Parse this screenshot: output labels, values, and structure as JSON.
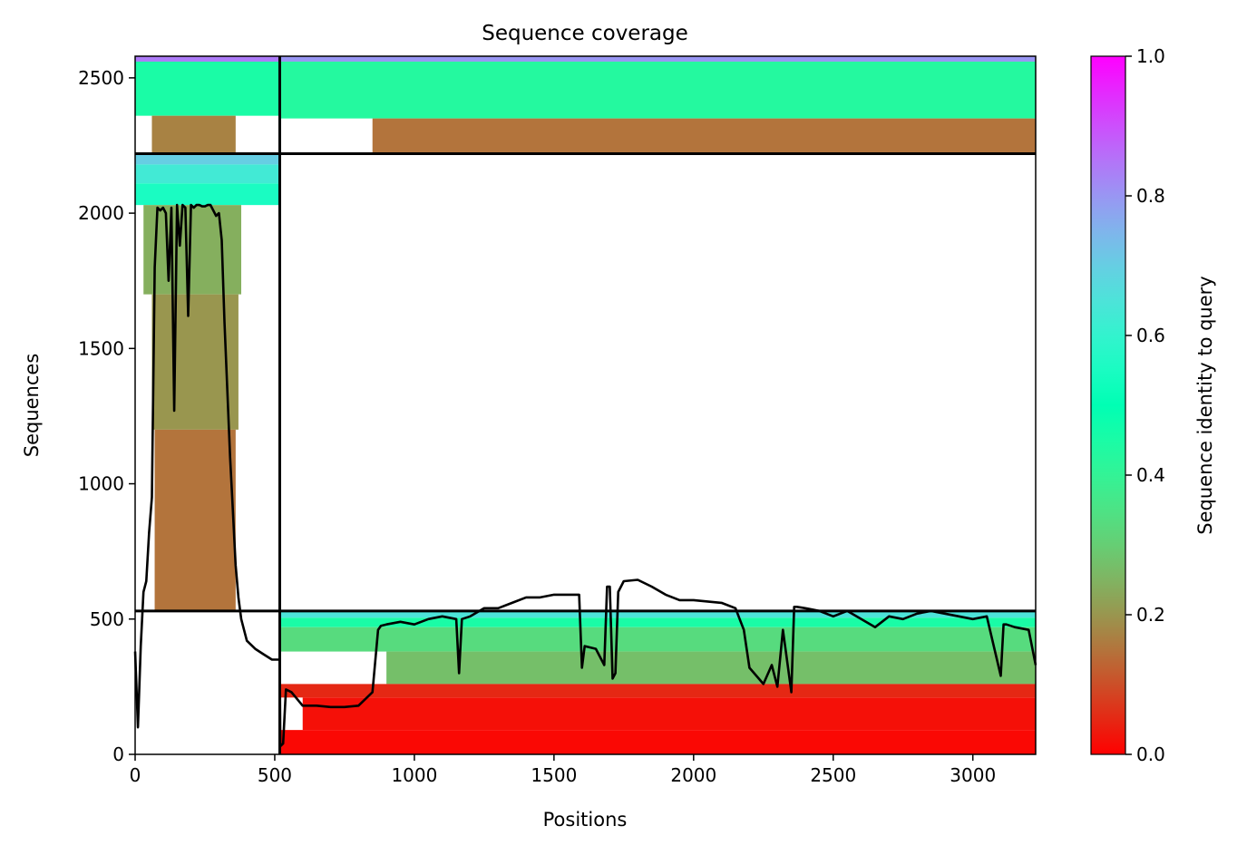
{
  "chart_data": {
    "type": "heatmap",
    "title": "Sequence coverage",
    "xlabel": "Positions",
    "ylabel": "Sequences",
    "xlim": [
      0,
      3225
    ],
    "ylim": [
      0,
      2580
    ],
    "x_ticks": [
      0,
      500,
      1000,
      1500,
      2000,
      2500,
      3000
    ],
    "y_ticks": [
      0,
      500,
      1000,
      1500,
      2000,
      2500
    ],
    "grid": false,
    "colormap": "rainbow_r",
    "colorbar": {
      "label": "Sequence identity to query",
      "range": [
        0,
        1
      ],
      "ticks": [
        0.0,
        0.2,
        0.4,
        0.6,
        0.8,
        1.0
      ],
      "tick_labels": [
        "0.0",
        "0.2",
        "0.4",
        "0.6",
        "0.8",
        "1.0"
      ]
    },
    "domain_boundaries": {
      "x": [
        518
      ],
      "y": [
        530,
        2220
      ]
    },
    "blocks": [
      {
        "x": [
          0,
          518
        ],
        "y": [
          2560,
          2580
        ],
        "identity": 0.84
      },
      {
        "x": [
          0,
          518
        ],
        "y": [
          2360,
          2560
        ],
        "identity": 0.45
      },
      {
        "x": [
          60,
          360
        ],
        "y": [
          2220,
          2360
        ],
        "identity": 0.17
      },
      {
        "x": [
          0,
          518
        ],
        "y": [
          2180,
          2220
        ],
        "identity": 0.7
      },
      {
        "x": [
          0,
          518
        ],
        "y": [
          2110,
          2180
        ],
        "identity": 0.63
      },
      {
        "x": [
          0,
          518
        ],
        "y": [
          2030,
          2110
        ],
        "identity": 0.55
      },
      {
        "x": [
          30,
          380
        ],
        "y": [
          1700,
          2030
        ],
        "identity": 0.24
      },
      {
        "x": [
          60,
          370
        ],
        "y": [
          1200,
          1700
        ],
        "identity": 0.2
      },
      {
        "x": [
          70,
          360
        ],
        "y": [
          530,
          1200
        ],
        "identity": 0.15
      },
      {
        "x": [
          518,
          3225
        ],
        "y": [
          2560,
          2580
        ],
        "identity": 0.8
      },
      {
        "x": [
          518,
          3225
        ],
        "y": [
          2350,
          2560
        ],
        "identity": 0.43
      },
      {
        "x": [
          850,
          3225
        ],
        "y": [
          2220,
          2350
        ],
        "identity": 0.15
      },
      {
        "x": [
          518,
          3225
        ],
        "y": [
          505,
          530
        ],
        "identity": 0.65
      },
      {
        "x": [
          518,
          3225
        ],
        "y": [
          470,
          505
        ],
        "identity": 0.45
      },
      {
        "x": [
          518,
          3225
        ],
        "y": [
          380,
          470
        ],
        "identity": 0.33
      },
      {
        "x": [
          900,
          3225
        ],
        "y": [
          260,
          380
        ],
        "identity": 0.27
      },
      {
        "x": [
          520,
          3225
        ],
        "y": [
          210,
          260
        ],
        "identity": 0.05
      },
      {
        "x": [
          600,
          3225
        ],
        "y": [
          90,
          210
        ],
        "identity": 0.02
      },
      {
        "x": [
          520,
          3225
        ],
        "y": [
          0,
          90
        ],
        "identity": 0.01
      }
    ],
    "coverage_line": {
      "x": [
        0,
        10,
        20,
        30,
        40,
        50,
        60,
        70,
        80,
        90,
        100,
        110,
        120,
        130,
        140,
        150,
        160,
        170,
        180,
        190,
        200,
        210,
        220,
        230,
        240,
        250,
        260,
        270,
        280,
        290,
        300,
        310,
        320,
        330,
        340,
        350,
        360,
        370,
        380,
        400,
        430,
        460,
        490,
        518,
        520,
        530,
        540,
        560,
        600,
        650,
        700,
        750,
        800,
        850,
        870,
        880,
        900,
        950,
        1000,
        1050,
        1100,
        1150,
        1160,
        1170,
        1200,
        1250,
        1300,
        1350,
        1400,
        1450,
        1500,
        1550,
        1590,
        1600,
        1610,
        1650,
        1680,
        1690,
        1700,
        1710,
        1720,
        1730,
        1750,
        1800,
        1850,
        1900,
        1950,
        2000,
        2050,
        2100,
        2150,
        2180,
        2200,
        2250,
        2280,
        2300,
        2320,
        2350,
        2360,
        2370,
        2400,
        2450,
        2500,
        2550,
        2600,
        2650,
        2700,
        2750,
        2800,
        2850,
        2900,
        2950,
        3000,
        3050,
        3100,
        3110,
        3120,
        3150,
        3200,
        3225
      ],
      "y": [
        380,
        100,
        400,
        600,
        640,
        820,
        950,
        1800,
        2020,
        2010,
        2020,
        2000,
        1750,
        2020,
        1270,
        2030,
        1880,
        2030,
        2020,
        1620,
        2030,
        2020,
        2030,
        2030,
        2025,
        2025,
        2030,
        2030,
        2010,
        1990,
        2000,
        1900,
        1600,
        1350,
        1100,
        900,
        700,
        580,
        500,
        420,
        390,
        370,
        350,
        350,
        30,
        40,
        240,
        230,
        180,
        180,
        175,
        175,
        180,
        230,
        460,
        475,
        480,
        490,
        480,
        500,
        510,
        500,
        300,
        500,
        510,
        540,
        540,
        560,
        580,
        580,
        590,
        590,
        590,
        320,
        400,
        390,
        330,
        620,
        620,
        280,
        300,
        600,
        640,
        645,
        620,
        590,
        570,
        570,
        565,
        560,
        540,
        460,
        320,
        260,
        330,
        250,
        460,
        230,
        545,
        545,
        540,
        530,
        510,
        530,
        500,
        470,
        510,
        500,
        520,
        530,
        520,
        510,
        500,
        510,
        290,
        480,
        480,
        470,
        460,
        330
      ]
    }
  }
}
